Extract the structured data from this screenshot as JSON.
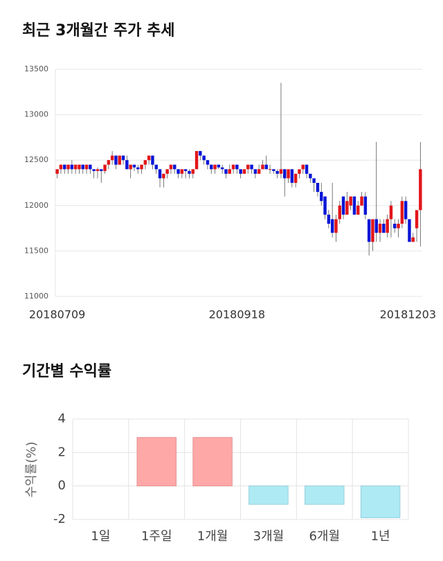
{
  "chart_data": [
    {
      "type": "candlestick",
      "title": "최근 3개월간 주가 추세",
      "categories": [
        "20180709",
        null,
        null,
        null,
        null,
        null,
        null,
        null,
        null,
        null,
        null,
        null,
        null,
        null,
        null,
        null,
        null,
        null,
        null,
        null,
        null,
        null,
        null,
        null,
        null,
        null,
        null,
        null,
        null,
        null,
        null,
        null,
        null,
        null,
        null,
        null,
        null,
        null,
        null,
        null,
        null,
        null,
        null,
        null,
        null,
        null,
        null,
        null,
        null,
        "20180918",
        null,
        null,
        null,
        null,
        null,
        null,
        null,
        null,
        null,
        null,
        null,
        null,
        null,
        null,
        null,
        null,
        null,
        null,
        null,
        null,
        null,
        null,
        null,
        null,
        null,
        null,
        null,
        null,
        null,
        null,
        null,
        null,
        null,
        null,
        null,
        null,
        null,
        null,
        null,
        null,
        null,
        null,
        null,
        null,
        null,
        null,
        null,
        null,
        null,
        "20181203"
      ],
      "ohlc": [
        [
          12350,
          12400,
          12300,
          12400
        ],
        [
          12400,
          12450,
          12350,
          12450
        ],
        [
          12450,
          12450,
          12350,
          12400
        ],
        [
          12400,
          12450,
          12350,
          12450
        ],
        [
          12450,
          12500,
          12350,
          12400
        ],
        [
          12400,
          12450,
          12350,
          12450
        ],
        [
          12400,
          12450,
          12350,
          12450
        ],
        [
          12450,
          12450,
          12350,
          12400
        ],
        [
          12400,
          12450,
          12350,
          12450
        ],
        [
          12450,
          12450,
          12350,
          12400
        ],
        [
          12400,
          12400,
          12300,
          12380
        ],
        [
          12380,
          12420,
          12300,
          12400
        ],
        [
          12400,
          12400,
          12250,
          12380
        ],
        [
          12380,
          12450,
          12350,
          12450
        ],
        [
          12450,
          12500,
          12400,
          12500
        ],
        [
          12500,
          12600,
          12450,
          12550
        ],
        [
          12550,
          12550,
          12400,
          12450
        ],
        [
          12450,
          12550,
          12450,
          12550
        ],
        [
          12550,
          12550,
          12450,
          12500
        ],
        [
          12500,
          12550,
          12400,
          12400
        ],
        [
          12400,
          12450,
          12300,
          12450
        ],
        [
          12450,
          12450,
          12380,
          12420
        ],
        [
          12420,
          12450,
          12350,
          12400
        ],
        [
          12400,
          12450,
          12350,
          12450
        ],
        [
          12450,
          12500,
          12400,
          12500
        ],
        [
          12500,
          12550,
          12450,
          12550
        ],
        [
          12550,
          12550,
          12400,
          12450
        ],
        [
          12450,
          12450,
          12350,
          12400
        ],
        [
          12400,
          12400,
          12200,
          12300
        ],
        [
          12300,
          12350,
          12200,
          12350
        ],
        [
          12350,
          12400,
          12300,
          12400
        ],
        [
          12400,
          12450,
          12350,
          12450
        ],
        [
          12450,
          12450,
          12350,
          12400
        ],
        [
          12400,
          12400,
          12300,
          12350
        ],
        [
          12350,
          12400,
          12300,
          12400
        ],
        [
          12400,
          12400,
          12300,
          12380
        ],
        [
          12380,
          12400,
          12300,
          12350
        ],
        [
          12350,
          12400,
          12300,
          12400
        ],
        [
          12400,
          12600,
          12400,
          12600
        ],
        [
          12600,
          12600,
          12500,
          12550
        ],
        [
          12550,
          12550,
          12450,
          12500
        ],
        [
          12500,
          12500,
          12400,
          12450
        ],
        [
          12450,
          12450,
          12350,
          12400
        ],
        [
          12400,
          12450,
          12350,
          12450
        ],
        [
          12450,
          12450,
          12400,
          12420
        ],
        [
          12420,
          12450,
          12350,
          12400
        ],
        [
          12400,
          12400,
          12300,
          12350
        ],
        [
          12350,
          12450,
          12350,
          12400
        ],
        [
          12400,
          12450,
          12350,
          12450
        ],
        [
          12450,
          12450,
          12350,
          12400
        ],
        [
          12400,
          12400,
          12300,
          12350
        ],
        [
          12350,
          12400,
          12350,
          12400
        ],
        [
          12400,
          12450,
          12350,
          12450
        ],
        [
          12450,
          12450,
          12350,
          12400
        ],
        [
          12400,
          12400,
          12300,
          12350
        ],
        [
          12350,
          12450,
          12350,
          12400
        ],
        [
          12400,
          12500,
          12400,
          12450
        ],
        [
          12450,
          12550,
          12400,
          12400
        ],
        [
          12400,
          12450,
          12350,
          12400
        ],
        [
          12400,
          12400,
          12350,
          12380
        ],
        [
          12380,
          12400,
          12300,
          12350
        ],
        [
          12350,
          13350,
          12300,
          12400
        ],
        [
          12400,
          12400,
          12100,
          12300
        ],
        [
          12300,
          12400,
          12250,
          12400
        ],
        [
          12400,
          12400,
          12200,
          12250
        ],
        [
          12250,
          12350,
          12200,
          12350
        ],
        [
          12350,
          12400,
          12300,
          12400
        ],
        [
          12400,
          12450,
          12350,
          12450
        ],
        [
          12450,
          12450,
          12300,
          12350
        ],
        [
          12350,
          12350,
          12250,
          12300
        ],
        [
          12300,
          12300,
          12150,
          12250
        ],
        [
          12250,
          12250,
          12100,
          12150
        ],
        [
          12150,
          12250,
          12000,
          12050
        ],
        [
          12100,
          12100,
          11850,
          11900
        ],
        [
          11900,
          11950,
          11750,
          11800
        ],
        [
          11850,
          12250,
          11650,
          11700
        ],
        [
          11700,
          11900,
          11600,
          11850
        ],
        [
          11850,
          12050,
          11800,
          12000
        ],
        [
          12100,
          12100,
          11850,
          11900
        ],
        [
          11900,
          12150,
          11900,
          12050
        ],
        [
          12000,
          12100,
          11950,
          12100
        ],
        [
          12100,
          12100,
          11900,
          11900
        ],
        [
          11900,
          12050,
          11900,
          12000
        ],
        [
          12000,
          12150,
          12000,
          12100
        ],
        [
          12100,
          12150,
          11850,
          11900
        ],
        [
          11850,
          11850,
          11450,
          11600
        ],
        [
          11600,
          11850,
          11500,
          11850
        ],
        [
          11850,
          12700,
          11600,
          11700
        ],
        [
          11700,
          11850,
          11600,
          11800
        ],
        [
          11800,
          11850,
          11700,
          11700
        ],
        [
          11700,
          11900,
          11650,
          11850
        ],
        [
          11850,
          12050,
          11650,
          12000
        ],
        [
          11800,
          11850,
          11700,
          11750
        ],
        [
          11750,
          11850,
          11650,
          11800
        ],
        [
          11800,
          12100,
          11750,
          12050
        ],
        [
          12050,
          12100,
          11800,
          11850
        ],
        [
          11850,
          11850,
          11600,
          11600
        ],
        [
          11600,
          11700,
          11600,
          11650
        ],
        [
          11750,
          11950,
          11600,
          11950
        ],
        [
          11950,
          12700,
          11550,
          12400
        ]
      ],
      "up_color": "#e2161a",
      "down_color": "#0a16d6",
      "ylim": [
        11000,
        13500
      ],
      "yticks": [
        11000,
        11500,
        12000,
        12500,
        13000,
        13500
      ],
      "grid": true
    },
    {
      "type": "bar",
      "title": "기간별 수익률",
      "y_label": "수익률(%)",
      "categories": [
        "1일",
        "1주일",
        "1개월",
        "3개월",
        "6개월",
        "1년"
      ],
      "values": [
        0,
        2.9,
        2.9,
        -1.1,
        -1.1,
        -1.9
      ],
      "positive_color": "#ffa8a8",
      "negative_color": "#aeeaf4",
      "ylim": [
        -2,
        4
      ],
      "yticks": [
        -2,
        0,
        2,
        4
      ],
      "grid": true
    }
  ]
}
